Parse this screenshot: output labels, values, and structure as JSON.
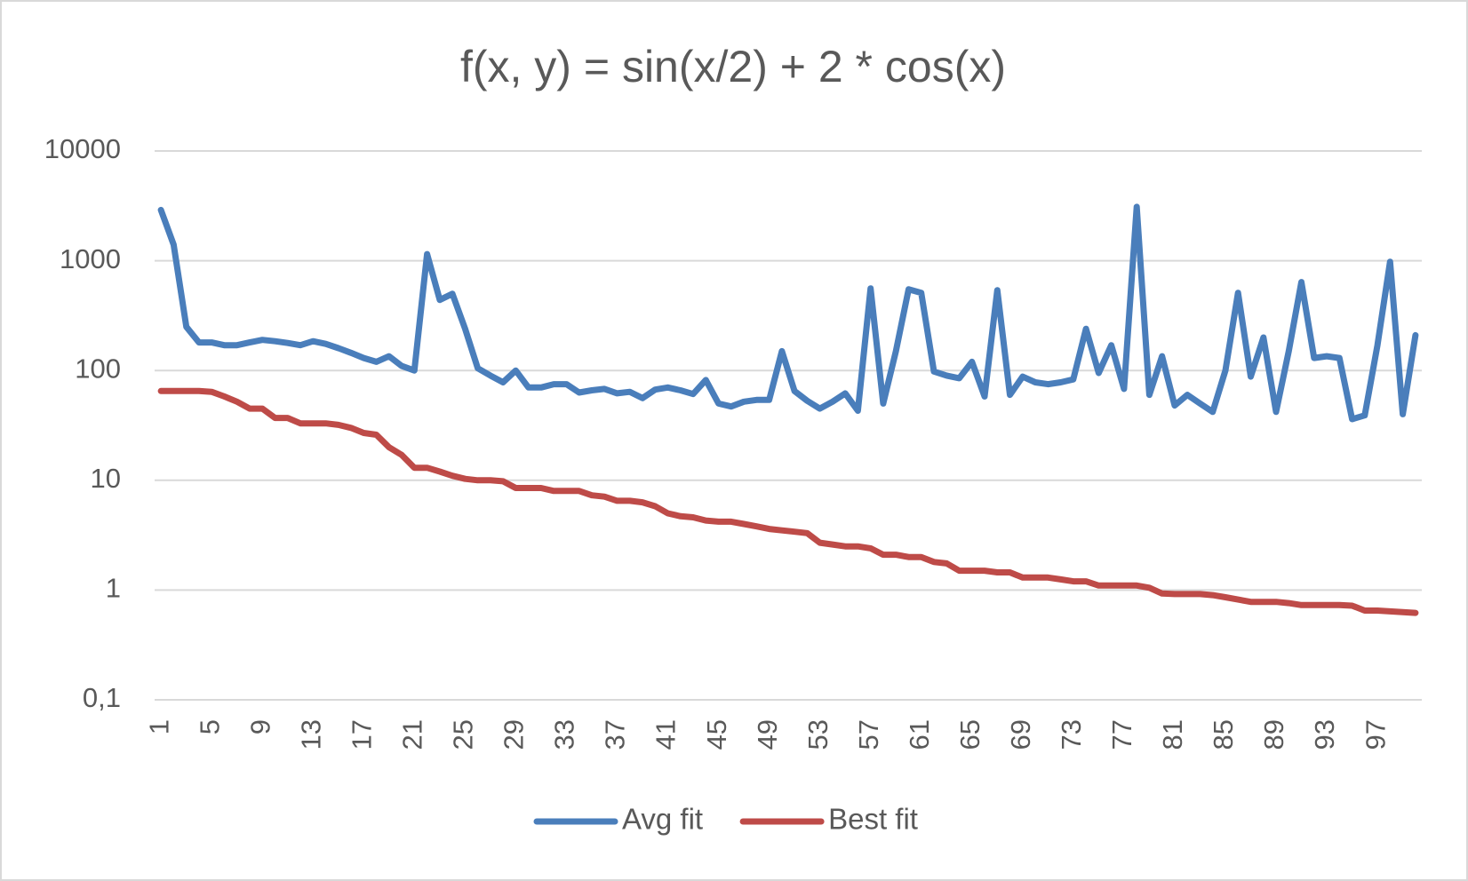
{
  "chart_data": {
    "type": "line",
    "title": "f(x, y) = sin(x/2) + 2 * cos(x)",
    "categories": [
      "1",
      null,
      null,
      null,
      "5",
      null,
      null,
      null,
      "9",
      null,
      null,
      null,
      "13",
      null,
      null,
      null,
      "17",
      null,
      null,
      null,
      "21",
      null,
      null,
      null,
      "25",
      null,
      null,
      null,
      "29",
      null,
      null,
      null,
      "33",
      null,
      null,
      null,
      "37",
      null,
      null,
      null,
      "41",
      null,
      null,
      null,
      "45",
      null,
      null,
      null,
      "49",
      null,
      null,
      null,
      "53",
      null,
      null,
      null,
      "57",
      null,
      null,
      null,
      "61",
      null,
      null,
      null,
      "65",
      null,
      null,
      null,
      "69",
      null,
      null,
      null,
      "73",
      null,
      null,
      null,
      "77",
      null,
      null,
      null,
      "81",
      null,
      null,
      null,
      "85",
      null,
      null,
      null,
      "89",
      null,
      null,
      null,
      "93",
      null,
      null,
      null,
      "97",
      null,
      null,
      null
    ],
    "series": [
      {
        "name": "Avg fit",
        "color": "#4a7ebb",
        "values": [
          2900,
          1400,
          250,
          180,
          180,
          170,
          170,
          180,
          190,
          185,
          178,
          170,
          185,
          175,
          160,
          145,
          130,
          120,
          135,
          110,
          100,
          1150,
          440,
          500,
          240,
          105,
          90,
          78,
          100,
          70,
          70,
          75,
          75,
          63,
          66,
          68,
          62,
          64,
          56,
          67,
          70,
          66,
          61,
          82,
          50,
          47,
          52,
          54,
          54,
          150,
          65,
          53,
          45,
          52,
          62,
          43,
          560,
          50,
          150,
          550,
          510,
          98,
          90,
          85,
          120,
          58,
          540,
          60,
          88,
          78,
          75,
          78,
          83,
          240,
          95,
          170,
          68,
          3100,
          60,
          135,
          48,
          60,
          50,
          42,
          100,
          510,
          88,
          200,
          42,
          150,
          640,
          130,
          135,
          130,
          36,
          39,
          170,
          980,
          40,
          210
        ]
      },
      {
        "name": "Best fit",
        "color": "#be4b48",
        "values": [
          65,
          65,
          65,
          65,
          64,
          58,
          52,
          45,
          45,
          37,
          37,
          33,
          33,
          33,
          32,
          30,
          27,
          26,
          20,
          17,
          13,
          13,
          12,
          11,
          10.3,
          10,
          10,
          9.8,
          8.5,
          8.5,
          8.5,
          8,
          8,
          8,
          7.3,
          7.1,
          6.5,
          6.5,
          6.3,
          5.8,
          5,
          4.7,
          4.6,
          4.3,
          4.2,
          4.2,
          4,
          3.8,
          3.6,
          3.5,
          3.4,
          3.3,
          2.7,
          2.6,
          2.5,
          2.5,
          2.4,
          2.1,
          2.1,
          2,
          2,
          1.8,
          1.75,
          1.5,
          1.5,
          1.5,
          1.45,
          1.45,
          1.3,
          1.3,
          1.3,
          1.25,
          1.2,
          1.2,
          1.1,
          1.1,
          1.1,
          1.1,
          1.05,
          0.93,
          0.92,
          0.92,
          0.92,
          0.9,
          0.86,
          0.82,
          0.78,
          0.78,
          0.78,
          0.76,
          0.73,
          0.73,
          0.73,
          0.73,
          0.72,
          0.65,
          0.65,
          0.64,
          0.63,
          0.62
        ]
      }
    ],
    "log_scale": true,
    "ylim": [
      0.1,
      10000
    ],
    "yticks": [
      {
        "value": 0.1,
        "label": "0,1"
      },
      1,
      10,
      100,
      1000,
      10000
    ],
    "grid": true,
    "legend": "bottom"
  }
}
